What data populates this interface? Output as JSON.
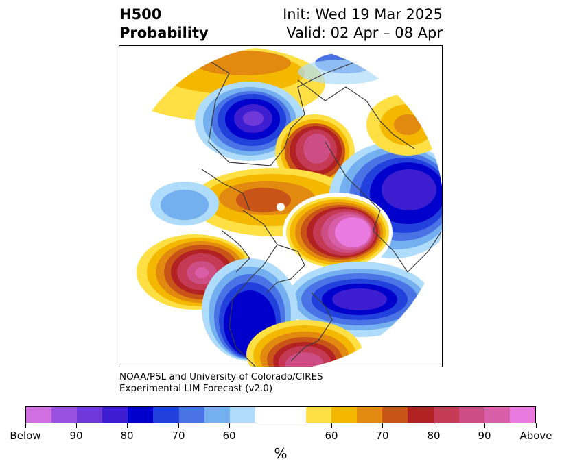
{
  "header": {
    "variable": "H500",
    "product": "Probability",
    "init": "Init: Wed 19 Mar 2025",
    "valid": "Valid: 02 Apr – 08 Apr"
  },
  "credit": {
    "line1": "NOAA/PSL and University of Colorado/CIRES",
    "line2": "Experimental LIM Forecast (v2.0)"
  },
  "colorbar": {
    "unit": "%",
    "colors": [
      "#d070e0",
      "#9a50e0",
      "#6e38d8",
      "#3c1ed0",
      "#0000cc",
      "#2240dc",
      "#4a74e6",
      "#74b0f0",
      "#aedcfa",
      "#ffffff",
      "#ffe044",
      "#f5b800",
      "#e28a10",
      "#c85418",
      "#b22222",
      "#c43a54",
      "#cc4e84",
      "#d85ea8",
      "#e87ae0"
    ],
    "tick_labels": [
      "Below",
      "90",
      "80",
      "70",
      "60",
      "60",
      "70",
      "80",
      "90",
      "Above"
    ]
  },
  "map": {
    "projection": "north-polar-stereographic",
    "anomalies": [
      {
        "region": "Siberia",
        "sign": "below",
        "peak": "80-90"
      },
      {
        "region": "Arctic / Kara Sea",
        "sign": "above",
        "peak": "80-90"
      },
      {
        "region": "Alaska / Chukchi",
        "sign": "above",
        "peak": "60-70"
      },
      {
        "region": "Northern Europe / Scandinavia",
        "sign": "below",
        "peak": "70-80"
      },
      {
        "region": "Greenland / North Atlantic",
        "sign": "above",
        "peak": "Above"
      },
      {
        "region": "Northeast Pacific",
        "sign": "above",
        "peak": "90"
      },
      {
        "region": "Eastern North America",
        "sign": "below",
        "peak": "80"
      },
      {
        "region": "Gulf of Mexico / Southeast US",
        "sign": "above",
        "peak": "90"
      },
      {
        "region": "Central Atlantic",
        "sign": "below",
        "peak": "80"
      }
    ]
  }
}
